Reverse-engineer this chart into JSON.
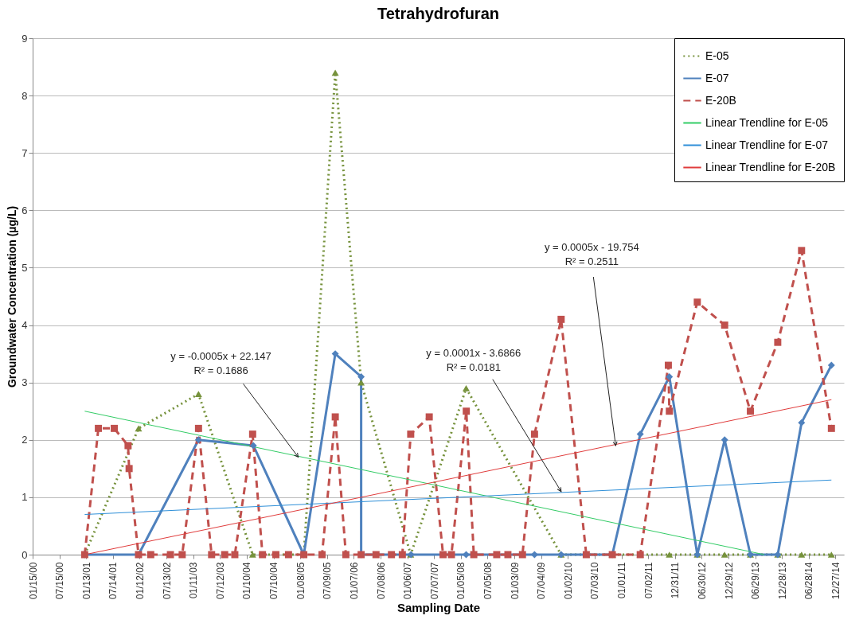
{
  "chart_data": {
    "type": "line",
    "title": "Tetrahydrofuran",
    "xlabel": "Sampling Date",
    "ylabel": "Groundwater Concentration (µg/L)",
    "xlim": [
      "2000-01-15",
      "2015-02-22"
    ],
    "ylim": [
      0,
      9
    ],
    "yticks": [
      0,
      1,
      2,
      3,
      4,
      5,
      6,
      7,
      8,
      9
    ],
    "xticks": [
      {
        "value": "2000-01-15",
        "label": "01/15/00"
      },
      {
        "value": "2000-07-15",
        "label": "07/15/00"
      },
      {
        "value": "2001-01-13",
        "label": "01/13/01"
      },
      {
        "value": "2001-07-14",
        "label": "07/14/01"
      },
      {
        "value": "2002-01-12",
        "label": "01/12/02"
      },
      {
        "value": "2002-07-13",
        "label": "07/13/02"
      },
      {
        "value": "2003-01-11",
        "label": "01/11/03"
      },
      {
        "value": "2003-07-12",
        "label": "07/12/03"
      },
      {
        "value": "2004-01-10",
        "label": "01/10/04"
      },
      {
        "value": "2004-07-10",
        "label": "07/10/04"
      },
      {
        "value": "2005-01-08",
        "label": "01/08/05"
      },
      {
        "value": "2005-07-09",
        "label": "07/09/05"
      },
      {
        "value": "2006-01-07",
        "label": "01/07/06"
      },
      {
        "value": "2006-07-08",
        "label": "07/08/06"
      },
      {
        "value": "2007-01-06",
        "label": "01/06/07"
      },
      {
        "value": "2007-07-07",
        "label": "07/07/07"
      },
      {
        "value": "2008-01-05",
        "label": "01/05/08"
      },
      {
        "value": "2008-07-05",
        "label": "07/05/08"
      },
      {
        "value": "2009-01-03",
        "label": "01/03/09"
      },
      {
        "value": "2009-07-04",
        "label": "07/04/09"
      },
      {
        "value": "2010-01-02",
        "label": "01/02/10"
      },
      {
        "value": "2010-07-03",
        "label": "07/03/10"
      },
      {
        "value": "2011-01-01",
        "label": "01/01/11"
      },
      {
        "value": "2011-07-02",
        "label": "07/02/11"
      },
      {
        "value": "2011-12-31",
        "label": "12/31/11"
      },
      {
        "value": "2012-06-30",
        "label": "06/30/12"
      },
      {
        "value": "2012-12-29",
        "label": "12/29/12"
      },
      {
        "value": "2013-06-29",
        "label": "06/29/13"
      },
      {
        "value": "2013-12-28",
        "label": "12/28/13"
      },
      {
        "value": "2014-06-28",
        "label": "06/28/14"
      },
      {
        "value": "2014-12-27",
        "label": "12/27/14"
      }
    ],
    "grid": "y",
    "legend": "top right",
    "series": [
      {
        "name": "E-05",
        "color": "#76923c",
        "marker": "triangle",
        "line_style": "dotted",
        "x": [
          "2001-01-03",
          "2002-01-04",
          "2003-02-16",
          "2004-02-19",
          "2005-02-01",
          "2005-09-03",
          "2006-02-26",
          "2007-01-29",
          "2008-02-10",
          "2009-11-17",
          "2010-05-07",
          "2010-10-31",
          "2011-05-09",
          "2011-11-23",
          "2012-05-31",
          "2012-12-03",
          "2013-05-27",
          "2013-11-29",
          "2014-05-10",
          "2014-11-29"
        ],
        "values": [
          0,
          2.2,
          2.8,
          0,
          0,
          8.4,
          3.0,
          0,
          2.9,
          0,
          0,
          0,
          0,
          0,
          0,
          0,
          0,
          0,
          0,
          0
        ]
      },
      {
        "name": "E-07",
        "color": "#4f81bd",
        "marker": "diamond",
        "line_style": "solid",
        "x": [
          "2001-01-03",
          "2002-01-04",
          "2003-02-16",
          "2004-02-24",
          "2005-02-01",
          "2005-09-03",
          "2006-02-26",
          "2006-02-26",
          "2007-01-31",
          "2008-02-10",
          "2009-05-20",
          "2009-11-17",
          "2010-10-31",
          "2011-05-09",
          "2011-11-23",
          "2012-05-31",
          "2012-12-03",
          "2013-05-27",
          "2013-11-29",
          "2014-05-10",
          "2014-11-29"
        ],
        "values": [
          0,
          0,
          2.0,
          1.9,
          0,
          3.5,
          3.1,
          0,
          0,
          0,
          0,
          0,
          0,
          2.1,
          3.1,
          0,
          2.0,
          0,
          0,
          2.3,
          3.3
        ]
      },
      {
        "name": "E-20B",
        "color": "#c0504d",
        "marker": "square",
        "line_style": "dashed",
        "x": [
          "2001-01-03",
          "2001-04-06",
          "2001-07-23",
          "2001-10-25",
          "2001-11-01",
          "2002-01-04",
          "2002-03-28",
          "2002-08-09",
          "2002-10-28",
          "2003-02-16",
          "2003-05-16",
          "2003-08-13",
          "2003-10-21",
          "2004-02-19",
          "2004-04-26",
          "2004-07-26",
          "2004-10-20",
          "2005-02-01",
          "2005-06-05",
          "2005-09-03",
          "2005-11-14",
          "2006-02-26",
          "2006-06-07",
          "2006-09-20",
          "2006-12-03",
          "2007-01-29",
          "2007-06-04",
          "2007-09-06",
          "2007-11-02",
          "2008-02-11",
          "2008-04-02",
          "2008-09-05",
          "2008-11-20",
          "2009-02-27",
          "2009-05-20",
          "2009-11-17",
          "2010-05-07",
          "2010-10-31",
          "2011-05-09",
          "2011-11-16",
          "2011-11-23",
          "2012-05-31",
          "2012-12-03",
          "2013-05-27",
          "2013-11-29",
          "2014-05-10",
          "2014-11-29"
        ],
        "values": [
          0,
          2.2,
          2.2,
          1.9,
          1.5,
          0,
          0,
          0,
          0,
          2.2,
          0,
          0,
          0,
          2.1,
          0,
          0,
          0,
          0,
          0,
          2.4,
          0,
          0,
          0,
          0,
          0,
          2.1,
          2.4,
          0,
          0,
          2.5,
          0,
          0,
          0,
          0,
          2.1,
          4.1,
          0,
          0,
          0,
          3.3,
          2.5,
          4.4,
          4.0,
          2.5,
          3.7,
          5.3,
          2.2
        ]
      },
      {
        "name": "Linear Trendline for E-05",
        "type": "line",
        "color": "#33cc66",
        "marker": "none",
        "line_style": "solid",
        "x": [
          "2001-01-03",
          "2013-08-30"
        ],
        "values": [
          2.5,
          0
        ]
      },
      {
        "name": "Linear Trendline for E-07",
        "type": "line",
        "color": "#2e8fd8",
        "marker": "none",
        "line_style": "solid",
        "x": [
          "2001-01-03",
          "2014-11-29"
        ],
        "values": [
          0.7,
          1.3
        ]
      },
      {
        "name": "Linear Trendline for E-20B",
        "type": "line",
        "color": "#e03c3c",
        "marker": "none",
        "line_style": "solid",
        "x": [
          "2001-01-03",
          "2014-11-29"
        ],
        "values": [
          0,
          2.7
        ]
      }
    ],
    "annotations": [
      {
        "text": "y = -0.0005x + 22.147\nR² = 0.1686",
        "x": "2004-12-25",
        "y": 1.7
      },
      {
        "text": "y = 0.0001x - 3.6866\nR² = 0.0181",
        "x": "2009-11-17",
        "y": 1.1
      },
      {
        "text": "y = 0.0005x - 19.754\nR² = 0.2511",
        "x": "2010-11-23",
        "y": 1.9
      }
    ]
  }
}
